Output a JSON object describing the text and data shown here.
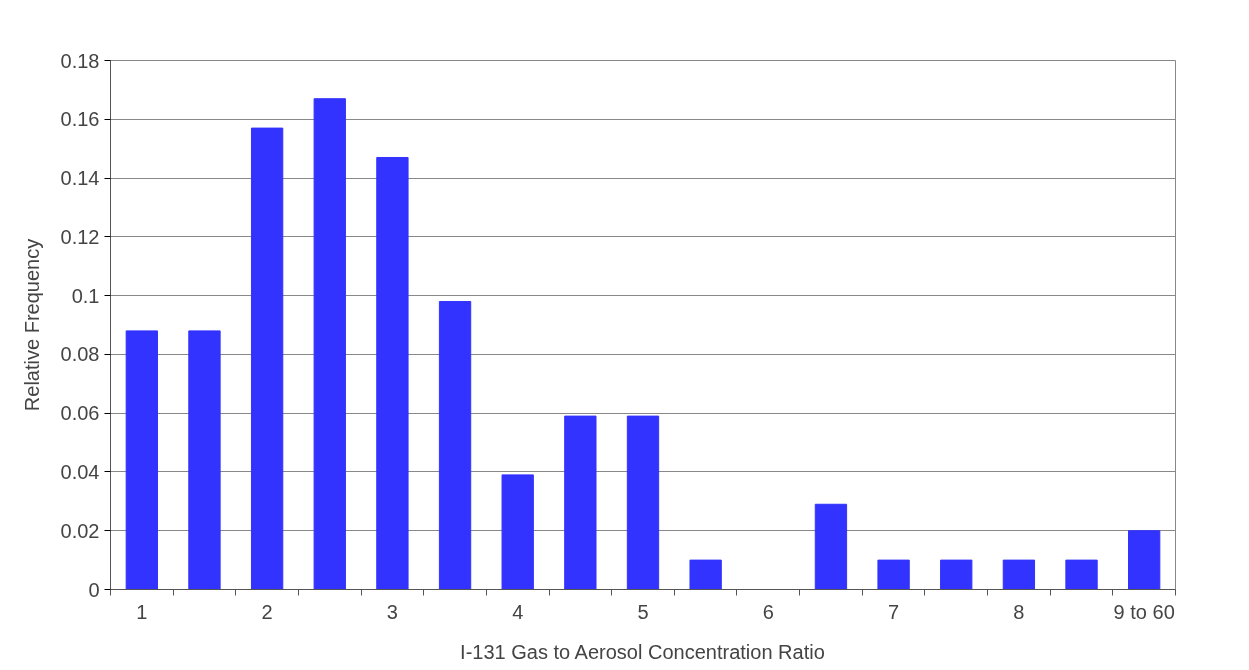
{
  "chart_data": {
    "type": "bar",
    "xlabel": "I-131 Gas to Aerosol Concentration Ratio",
    "ylabel": "Relative Frequency",
    "categories": [
      "1",
      null,
      "2",
      null,
      "3",
      null,
      "4",
      null,
      "5",
      null,
      "6",
      null,
      "7",
      null,
      "8",
      null,
      "9 to 60"
    ],
    "values": [
      0.088,
      0.088,
      0.157,
      0.167,
      0.147,
      0.098,
      0.039,
      0.059,
      0.059,
      0.01,
      0,
      0.029,
      0.01,
      0.01,
      0.01,
      0.01,
      0.02
    ],
    "color": "#3333ff",
    "ylim": [
      0,
      0.18
    ],
    "yticks": [
      0,
      0.02,
      0.04,
      0.06,
      0.08,
      0.1,
      0.12,
      0.14,
      0.16,
      0.18
    ],
    "grid": "y"
  }
}
